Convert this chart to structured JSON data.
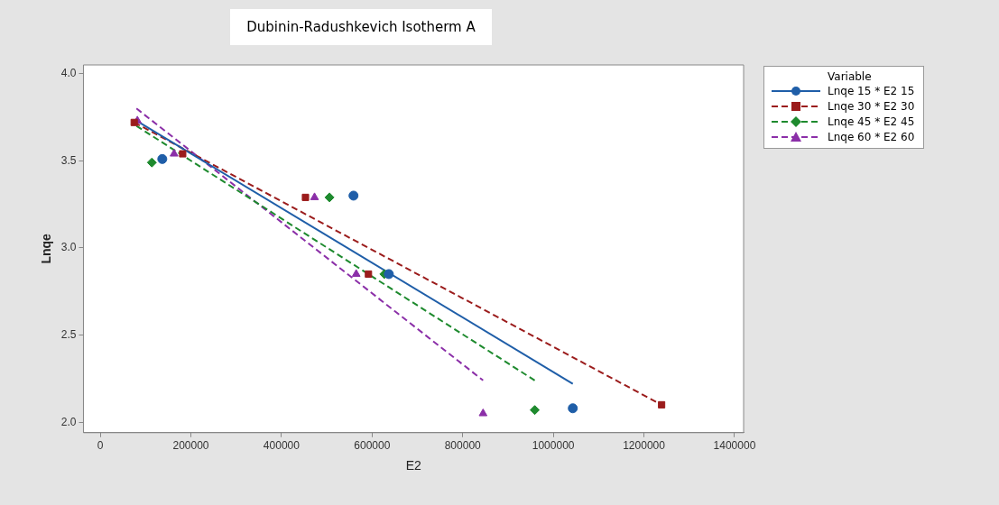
{
  "chart_data": {
    "type": "scatter",
    "title": "Dubinin-Radushkevich Isotherm A",
    "xlabel": "E2",
    "ylabel": "Lnqe",
    "legend_title": "Variable",
    "legend": "right",
    "grid": false,
    "xlim": [
      -37000,
      1420000
    ],
    "xticks": [
      0,
      200000,
      400000,
      600000,
      800000,
      1000000,
      1200000,
      1400000
    ],
    "ylim": [
      1.94,
      4.05
    ],
    "yticks": [
      {
        "value": 2,
        "label": "2.0"
      },
      {
        "value": 2.5,
        "label": "2.5"
      },
      {
        "value": 3,
        "label": "3.0"
      },
      {
        "value": 3.5,
        "label": "3.5"
      },
      {
        "value": 4,
        "label": "4.0"
      }
    ],
    "series": [
      {
        "name": "Lnqe 15 * E2 15",
        "type": "scatter",
        "marker": "circle",
        "line_style": "solid",
        "color": "#1f5ea8",
        "x": [
          137000,
          559000,
          637000,
          1043000
        ],
        "values": [
          3.51,
          3.3,
          2.85,
          2.08
        ]
      },
      {
        "name": "Lnqe 30 * E2 30",
        "type": "scatter",
        "marker": "square",
        "line_style": "dashed",
        "color": "#9b1c1c",
        "x": [
          75000,
          182000,
          453000,
          592000,
          1239000
        ],
        "values": [
          3.72,
          3.54,
          3.29,
          2.85,
          2.1
        ]
      },
      {
        "name": "Lnqe 45 * E2 45",
        "type": "scatter",
        "marker": "diamond",
        "line_style": "dashed",
        "color": "#1e8a2e",
        "x": [
          114000,
          506000,
          627000,
          959000
        ],
        "values": [
          3.49,
          3.29,
          2.85,
          2.07
        ]
      },
      {
        "name": "Lnqe 60 * E2 60",
        "type": "scatter",
        "marker": "triangle",
        "line_style": "dashed",
        "color": "#8b2fa8",
        "x": [
          82000,
          163000,
          473000,
          565000,
          845000
        ],
        "values": [
          3.73,
          3.54,
          3.29,
          2.85,
          2.05
        ]
      },
      {
        "type": "line",
        "marker": "none",
        "line_style": "solid",
        "color": "#1f5ea8",
        "x": [
          80000,
          1043000
        ],
        "values": [
          3.73,
          2.22
        ]
      },
      {
        "type": "line",
        "marker": "none",
        "line_style": "dashed",
        "color": "#9b1c1c",
        "x": [
          75000,
          1239000
        ],
        "values": [
          3.72,
          2.1
        ]
      },
      {
        "type": "line",
        "marker": "none",
        "line_style": "dashed",
        "color": "#1e8a2e",
        "x": [
          80000,
          959000
        ],
        "values": [
          3.7,
          2.24
        ]
      },
      {
        "type": "line",
        "marker": "none",
        "line_style": "dashed",
        "color": "#8b2fa8",
        "x": [
          80000,
          845000
        ],
        "values": [
          3.8,
          2.24
        ]
      }
    ]
  }
}
